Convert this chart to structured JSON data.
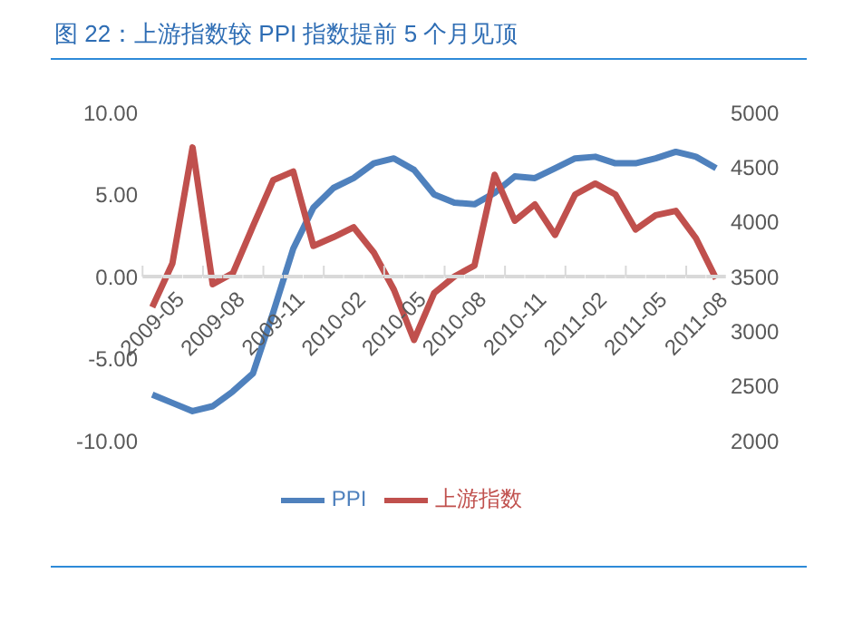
{
  "chart_data": {
    "type": "line",
    "title": "图 22：上游指数较 PPI 指数提前 5 个月见顶",
    "categories": [
      "2009-05",
      null,
      null,
      "2009-08",
      null,
      null,
      "2009-11",
      null,
      null,
      "2010-02",
      null,
      null,
      "2010-05",
      null,
      null,
      "2010-08",
      null,
      null,
      "2010-11",
      null,
      null,
      "2011-02",
      null,
      null,
      "2011-05",
      null,
      null,
      "2011-08",
      null
    ],
    "series": [
      {
        "name": "PPI",
        "color": "#4f81bd",
        "values": [
          -7.2,
          -7.7,
          -8.2,
          -7.9,
          -7.0,
          -5.9,
          -2.2,
          1.7,
          4.2,
          5.4,
          6.0,
          6.9,
          7.2,
          6.5,
          5.0,
          4.5,
          4.4,
          5.1,
          6.1,
          6.0,
          6.6,
          7.2,
          7.3,
          6.9,
          6.9,
          7.2,
          7.6,
          7.3,
          6.6
        ]
      },
      {
        "name": "上游指数",
        "color": "#c0504d",
        "axis": "y2",
        "values": [
          3220,
          3620,
          4680,
          3430,
          3530,
          3960,
          4380,
          4460,
          3780,
          3860,
          3950,
          3720,
          3380,
          2920,
          3350,
          3500,
          3600,
          4430,
          4010,
          4160,
          3880,
          4250,
          4350,
          4250,
          3930,
          4060,
          4100,
          3850,
          3480
        ]
      }
    ],
    "ylim": [
      -10,
      10
    ],
    "yticks": [
      {
        "value": -10,
        "label": "-10.00"
      },
      {
        "value": -5,
        "label": "-5.00"
      },
      {
        "value": 0,
        "label": "0.00"
      },
      {
        "value": 5,
        "label": "5.00"
      },
      {
        "value": 10,
        "label": "10.00"
      }
    ],
    "y2lim": [
      2000,
      5000
    ],
    "y2ticks": [
      2000,
      2500,
      3000,
      3500,
      4000,
      4500,
      5000
    ],
    "grid": false,
    "legend": "bottom",
    "marker": "none",
    "line_style": "solid"
  }
}
